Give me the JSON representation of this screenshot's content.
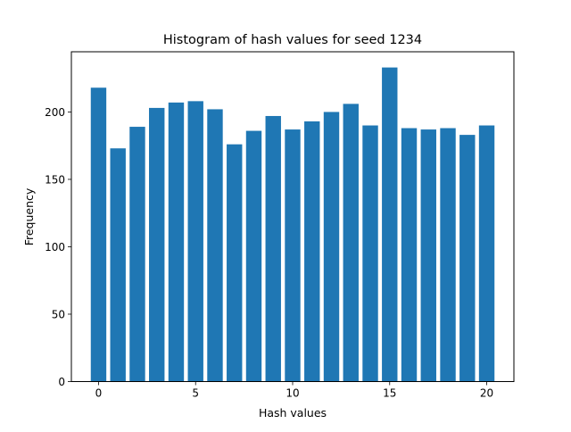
{
  "chart_data": {
    "type": "bar",
    "title": "Histogram of hash values for seed 1234",
    "xlabel": "Hash values",
    "ylabel": "Frequency",
    "bar_color": "#1f77b4",
    "x": [
      0,
      1,
      2,
      3,
      4,
      5,
      6,
      7,
      8,
      9,
      10,
      11,
      12,
      13,
      14,
      15,
      16,
      17,
      18,
      19,
      20
    ],
    "values": [
      218,
      173,
      189,
      203,
      207,
      208,
      202,
      176,
      186,
      197,
      187,
      193,
      200,
      206,
      190,
      233,
      188,
      187,
      188,
      183,
      190
    ],
    "xlim": [
      -1.4,
      21.4
    ],
    "ylim": [
      0,
      244.65
    ],
    "xticks": [
      0,
      5,
      10,
      15,
      20
    ],
    "yticks": [
      0,
      50,
      100,
      150,
      200
    ],
    "grid": false,
    "legend": "none"
  }
}
